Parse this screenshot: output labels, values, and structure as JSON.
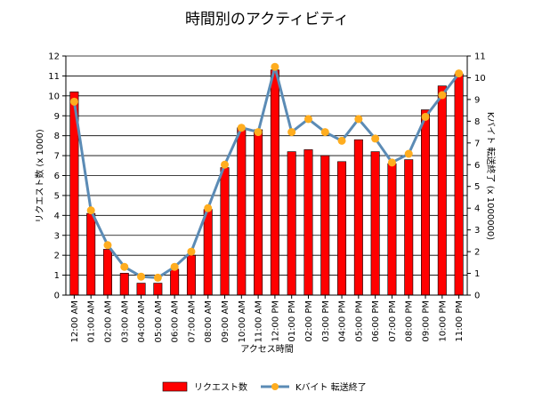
{
  "chart_data": {
    "type": "bar",
    "title": "時間別のアクティビティ",
    "xlabel": "アクセス時間",
    "ylabel": "リクエスト数 (x 1000)",
    "y2label": "Kバイト 転送終了 (x 1000000)",
    "ylim": [
      0,
      12
    ],
    "y2lim": [
      0,
      11
    ],
    "yticks": [
      "0",
      "1",
      "2",
      "3",
      "4",
      "5",
      "6",
      "7",
      "8",
      "9",
      "10",
      "11",
      "12"
    ],
    "y2ticks": [
      "0",
      "1",
      "2",
      "3",
      "4",
      "5",
      "6",
      "7",
      "8",
      "9",
      "10",
      "11"
    ],
    "grid": true,
    "legend_position": "bottom",
    "categories": [
      "12:00 AM",
      "01:00 AM",
      "02:00 AM",
      "03:00 AM",
      "04:00 AM",
      "05:00 AM",
      "06:00 AM",
      "07:00 AM",
      "08:00 AM",
      "09:00 AM",
      "10:00 AM",
      "11:00 AM",
      "12:00 PM",
      "01:00 PM",
      "02:00 PM",
      "03:00 PM",
      "04:00 PM",
      "05:00 PM",
      "06:00 PM",
      "07:00 PM",
      "08:00 PM",
      "09:00 PM",
      "10:00 PM",
      "11:00 PM"
    ],
    "series": [
      {
        "name": "リクエスト数",
        "kind": "bar",
        "axis": "left",
        "color": "#ff0000",
        "values": [
          10.2,
          4.1,
          2.3,
          1.1,
          0.6,
          0.6,
          1.3,
          2.0,
          4.3,
          6.4,
          8.4,
          8.3,
          11.3,
          7.2,
          7.3,
          7.0,
          6.7,
          7.8,
          7.2,
          6.6,
          6.8,
          9.3,
          10.5,
          11.1
        ]
      },
      {
        "name": "Kバイト 転送終了",
        "kind": "line",
        "axis": "right",
        "color": "#5b8bb5",
        "marker_color": "#ffad1f",
        "values": [
          8.9,
          3.9,
          2.3,
          1.3,
          0.85,
          0.8,
          1.3,
          2.0,
          4.0,
          6.0,
          7.7,
          7.5,
          10.5,
          7.5,
          8.1,
          7.5,
          7.1,
          8.1,
          7.2,
          6.1,
          6.5,
          8.2,
          9.2,
          10.2
        ]
      }
    ]
  }
}
